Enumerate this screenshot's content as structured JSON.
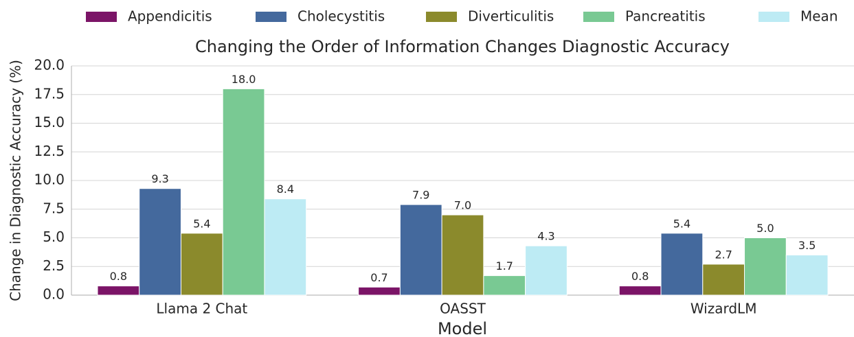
{
  "chart_data": {
    "type": "bar",
    "title": "Changing the Order of Information Changes Diagnostic Accuracy",
    "x_label": "Model",
    "y_label": "Change in Diagnostic Accuracy (%)",
    "categories": [
      "Llama 2 Chat",
      "OASST",
      "WizardLM"
    ],
    "series": [
      {
        "name": "Appendicitis",
        "color": "#7b1467",
        "values": [
          0.8,
          0.7,
          0.8
        ],
        "value_labels": [
          "0.8",
          "0.7",
          "0.8"
        ]
      },
      {
        "name": "Cholecystitis",
        "color": "#44699d",
        "values": [
          9.3,
          7.9,
          5.4
        ],
        "value_labels": [
          "9.3",
          "7.9",
          "5.4"
        ]
      },
      {
        "name": "Diverticulitis",
        "color": "#8b8a2c",
        "values": [
          5.4,
          7.0,
          2.7
        ],
        "value_labels": [
          "5.4",
          "7.0",
          "2.7"
        ]
      },
      {
        "name": "Pancreatitis",
        "color": "#79c993",
        "values": [
          18.0,
          1.7,
          5.0
        ],
        "value_labels": [
          "18.0",
          "1.7",
          "5.0"
        ]
      },
      {
        "name": "Mean",
        "color": "#bdebf4",
        "values": [
          8.4,
          4.3,
          3.5
        ],
        "value_labels": [
          "8.4",
          "4.3",
          "3.5"
        ]
      }
    ],
    "ylim": [
      0,
      20
    ],
    "yticks": [
      {
        "value": 0,
        "label": "0.0"
      },
      2.5,
      {
        "value": 5,
        "label": "5.0"
      },
      7.5,
      {
        "value": 10,
        "label": "10.0"
      },
      12.5,
      {
        "value": 15,
        "label": "15.0"
      },
      17.5,
      {
        "value": 20,
        "label": "20.0"
      }
    ],
    "grid": true
  }
}
